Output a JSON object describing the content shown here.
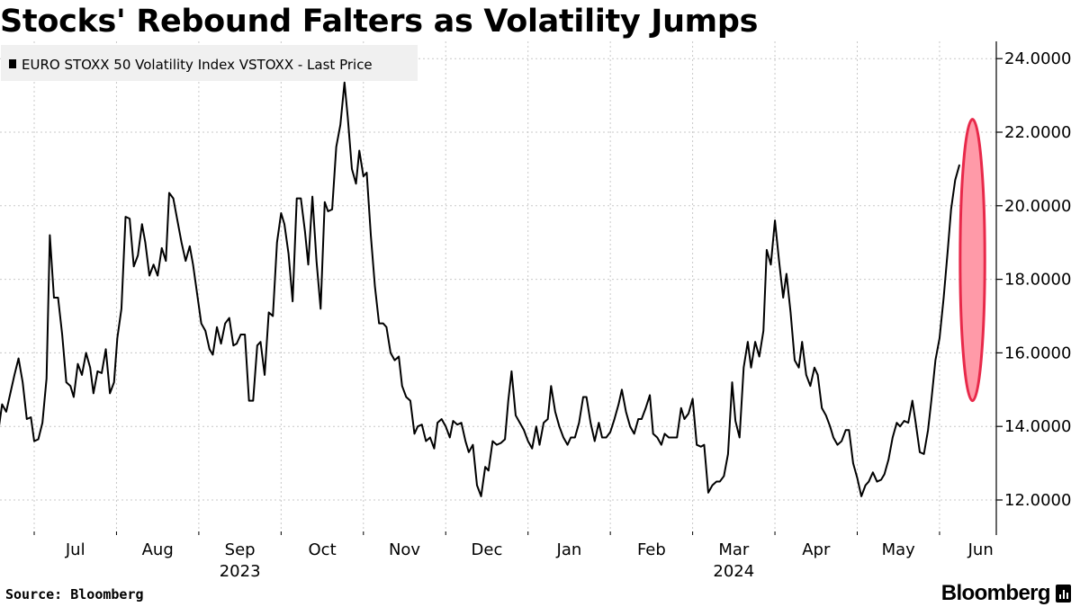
{
  "title": "Stocks' Rebound Falters as Volatility Jumps",
  "source": "Source: Bloomberg",
  "brand": "Bloomberg",
  "colors": {
    "line": "#000000",
    "highlight_fill": "#ff9aa8",
    "highlight_stroke": "#e8294a",
    "grid": "#c8c8c8",
    "legend_bg": "#f0f0f0"
  },
  "chart_data": {
    "type": "line",
    "title": "Stocks' Rebound Falters as Volatility Jumps",
    "xlabel": "",
    "ylabel": "",
    "ylim": [
      11.0,
      25.0
    ],
    "yticks": [
      12,
      14,
      16,
      18,
      20,
      22,
      24
    ],
    "ytick_labels": [
      "12.0000",
      "14.0000",
      "16.0000",
      "18.0000",
      "20.0000",
      "22.0000",
      "24.0000"
    ],
    "month_labels": [
      "Jul",
      "Aug",
      "Sep",
      "Oct",
      "Nov",
      "Dec",
      "Jan",
      "Feb",
      "Mar",
      "Apr",
      "May",
      "Jun"
    ],
    "year_labels": [
      {
        "label": "2023",
        "month_index": 2
      },
      {
        "label": "2024",
        "month_index": 8
      }
    ],
    "legend": "EURO STOXX 50 Volatility Index VSTOXX - Last Price",
    "legend_position": "top-left",
    "highlight": {
      "shape": "ellipse",
      "month_from": 11.25,
      "month_to": 11.55,
      "y_from": 14.7,
      "y_to": 22.35
    },
    "series": [
      {
        "name": "EURO STOXX 50 Volatility Index VSTOXX - Last Price",
        "points": [
          [
            -0.44,
            13.8
          ],
          [
            -0.39,
            14.6
          ],
          [
            -0.34,
            14.4
          ],
          [
            -0.29,
            14.9
          ],
          [
            -0.24,
            15.4
          ],
          [
            -0.19,
            15.85
          ],
          [
            -0.14,
            15.2
          ],
          [
            -0.09,
            14.2
          ],
          [
            -0.04,
            14.25
          ],
          [
            0.0,
            13.6
          ],
          [
            0.05,
            13.65
          ],
          [
            0.1,
            14.1
          ],
          [
            0.15,
            15.3
          ],
          [
            0.19,
            19.2
          ],
          [
            0.24,
            17.5
          ],
          [
            0.29,
            17.5
          ],
          [
            0.34,
            16.5
          ],
          [
            0.39,
            15.2
          ],
          [
            0.44,
            15.1
          ],
          [
            0.48,
            14.8
          ],
          [
            0.53,
            15.7
          ],
          [
            0.58,
            15.4
          ],
          [
            0.63,
            16.0
          ],
          [
            0.68,
            15.6
          ],
          [
            0.72,
            14.9
          ],
          [
            0.77,
            15.5
          ],
          [
            0.82,
            15.45
          ],
          [
            0.87,
            16.1
          ],
          [
            0.92,
            14.9
          ],
          [
            0.97,
            15.2
          ],
          [
            1.01,
            16.4
          ],
          [
            1.06,
            17.2
          ],
          [
            1.11,
            19.7
          ],
          [
            1.16,
            19.65
          ],
          [
            1.21,
            18.35
          ],
          [
            1.26,
            18.65
          ],
          [
            1.31,
            19.5
          ],
          [
            1.35,
            19.0
          ],
          [
            1.4,
            18.1
          ],
          [
            1.45,
            18.4
          ],
          [
            1.5,
            18.1
          ],
          [
            1.55,
            18.85
          ],
          [
            1.6,
            18.5
          ],
          [
            1.64,
            20.35
          ],
          [
            1.69,
            20.2
          ],
          [
            1.74,
            19.6
          ],
          [
            1.79,
            19.0
          ],
          [
            1.84,
            18.5
          ],
          [
            1.89,
            18.9
          ],
          [
            1.93,
            18.4
          ],
          [
            1.98,
            17.6
          ],
          [
            2.03,
            16.8
          ],
          [
            2.08,
            16.6
          ],
          [
            2.13,
            16.1
          ],
          [
            2.17,
            15.95
          ],
          [
            2.22,
            16.7
          ],
          [
            2.27,
            16.25
          ],
          [
            2.32,
            16.8
          ],
          [
            2.37,
            16.95
          ],
          [
            2.42,
            16.2
          ],
          [
            2.46,
            16.25
          ],
          [
            2.51,
            16.5
          ],
          [
            2.56,
            16.5
          ],
          [
            2.61,
            14.7
          ],
          [
            2.66,
            14.7
          ],
          [
            2.71,
            16.2
          ],
          [
            2.75,
            16.3
          ],
          [
            2.8,
            15.4
          ],
          [
            2.85,
            17.1
          ],
          [
            2.9,
            17.0
          ],
          [
            2.95,
            19.0
          ],
          [
            3.0,
            19.8
          ],
          [
            3.04,
            19.5
          ],
          [
            3.09,
            18.7
          ],
          [
            3.14,
            17.4
          ],
          [
            3.19,
            20.2
          ],
          [
            3.24,
            20.2
          ],
          [
            3.29,
            19.3
          ],
          [
            3.33,
            18.4
          ],
          [
            3.38,
            20.25
          ],
          [
            3.43,
            18.5
          ],
          [
            3.48,
            17.2
          ],
          [
            3.53,
            20.1
          ],
          [
            3.57,
            19.85
          ],
          [
            3.62,
            19.9
          ],
          [
            3.67,
            21.6
          ],
          [
            3.72,
            22.2
          ],
          [
            3.77,
            23.35
          ],
          [
            3.81,
            22.4
          ],
          [
            3.86,
            21.0
          ],
          [
            3.91,
            20.6
          ],
          [
            3.95,
            21.5
          ],
          [
            4.0,
            20.8
          ],
          [
            4.04,
            20.9
          ],
          [
            4.09,
            19.2
          ],
          [
            4.14,
            17.8
          ],
          [
            4.19,
            16.8
          ],
          [
            4.24,
            16.8
          ],
          [
            4.28,
            16.7
          ],
          [
            4.33,
            16.0
          ],
          [
            4.38,
            15.8
          ],
          [
            4.43,
            15.9
          ],
          [
            4.47,
            15.1
          ],
          [
            4.52,
            14.8
          ],
          [
            4.57,
            14.7
          ],
          [
            4.62,
            13.8
          ],
          [
            4.66,
            14.0
          ],
          [
            4.71,
            14.05
          ],
          [
            4.76,
            13.6
          ],
          [
            4.81,
            13.7
          ],
          [
            4.86,
            13.4
          ],
          [
            4.9,
            14.1
          ],
          [
            4.95,
            14.2
          ],
          [
            5.0,
            14.0
          ],
          [
            5.05,
            13.7
          ],
          [
            5.09,
            14.15
          ],
          [
            5.14,
            14.05
          ],
          [
            5.19,
            14.1
          ],
          [
            5.24,
            13.6
          ],
          [
            5.28,
            13.3
          ],
          [
            5.33,
            13.5
          ],
          [
            5.38,
            12.4
          ],
          [
            5.43,
            12.1
          ],
          [
            5.48,
            12.9
          ],
          [
            5.52,
            12.8
          ],
          [
            5.57,
            13.6
          ],
          [
            5.62,
            13.5
          ],
          [
            5.67,
            13.55
          ],
          [
            5.72,
            13.65
          ],
          [
            5.76,
            14.7
          ],
          [
            5.8,
            15.5
          ],
          [
            5.85,
            14.3
          ],
          [
            5.9,
            14.1
          ],
          [
            5.95,
            13.9
          ],
          [
            6.0,
            13.6
          ],
          [
            6.05,
            13.4
          ],
          [
            6.1,
            14.0
          ],
          [
            6.14,
            13.5
          ],
          [
            6.19,
            14.1
          ],
          [
            6.24,
            14.2
          ],
          [
            6.28,
            15.1
          ],
          [
            6.33,
            14.4
          ],
          [
            6.38,
            14.0
          ],
          [
            6.43,
            13.7
          ],
          [
            6.48,
            13.5
          ],
          [
            6.52,
            13.7
          ],
          [
            6.57,
            13.7
          ],
          [
            6.62,
            14.1
          ],
          [
            6.67,
            14.8
          ],
          [
            6.71,
            14.8
          ],
          [
            6.76,
            14.1
          ],
          [
            6.81,
            13.6
          ],
          [
            6.86,
            14.1
          ],
          [
            6.9,
            13.7
          ],
          [
            6.95,
            13.7
          ],
          [
            7.0,
            13.85
          ],
          [
            7.05,
            14.2
          ],
          [
            7.1,
            14.6
          ],
          [
            7.14,
            15.0
          ],
          [
            7.19,
            14.4
          ],
          [
            7.24,
            14.0
          ],
          [
            7.29,
            13.8
          ],
          [
            7.34,
            14.2
          ],
          [
            7.38,
            14.2
          ],
          [
            7.43,
            14.5
          ],
          [
            7.48,
            14.85
          ],
          [
            7.52,
            13.8
          ],
          [
            7.57,
            13.7
          ],
          [
            7.62,
            13.5
          ],
          [
            7.66,
            13.8
          ],
          [
            7.71,
            13.7
          ],
          [
            7.76,
            13.7
          ],
          [
            7.81,
            13.7
          ],
          [
            7.86,
            14.5
          ],
          [
            7.9,
            14.2
          ],
          [
            7.95,
            14.35
          ],
          [
            8.0,
            14.75
          ],
          [
            8.05,
            13.5
          ],
          [
            8.1,
            13.45
          ],
          [
            8.14,
            13.5
          ],
          [
            8.19,
            12.2
          ],
          [
            8.24,
            12.4
          ],
          [
            8.29,
            12.5
          ],
          [
            8.33,
            12.5
          ],
          [
            8.38,
            12.65
          ],
          [
            8.43,
            13.25
          ],
          [
            8.48,
            15.2
          ],
          [
            8.52,
            14.15
          ],
          [
            8.57,
            13.7
          ],
          [
            8.62,
            15.6
          ],
          [
            8.67,
            16.3
          ],
          [
            8.71,
            15.6
          ],
          [
            8.76,
            16.3
          ],
          [
            8.81,
            15.9
          ],
          [
            8.86,
            16.6
          ],
          [
            8.9,
            18.8
          ],
          [
            8.95,
            18.4
          ],
          [
            9.0,
            19.6
          ],
          [
            9.05,
            18.5
          ],
          [
            9.1,
            17.5
          ],
          [
            9.14,
            18.15
          ],
          [
            9.19,
            17.1
          ],
          [
            9.24,
            15.8
          ],
          [
            9.29,
            15.6
          ],
          [
            9.33,
            16.3
          ],
          [
            9.38,
            15.4
          ],
          [
            9.43,
            15.1
          ],
          [
            9.48,
            15.6
          ],
          [
            9.52,
            15.4
          ],
          [
            9.57,
            14.5
          ],
          [
            9.62,
            14.3
          ],
          [
            9.67,
            14.0
          ],
          [
            9.71,
            13.7
          ],
          [
            9.76,
            13.5
          ],
          [
            9.81,
            13.6
          ],
          [
            9.86,
            13.9
          ],
          [
            9.9,
            13.9
          ],
          [
            9.95,
            13.0
          ],
          [
            10.0,
            12.6
          ],
          [
            10.05,
            12.1
          ],
          [
            10.1,
            12.4
          ],
          [
            10.14,
            12.5
          ],
          [
            10.19,
            12.75
          ],
          [
            10.24,
            12.5
          ],
          [
            10.29,
            12.55
          ],
          [
            10.33,
            12.7
          ],
          [
            10.38,
            13.1
          ],
          [
            10.43,
            13.7
          ],
          [
            10.48,
            14.1
          ],
          [
            10.52,
            14.0
          ],
          [
            10.57,
            14.15
          ],
          [
            10.62,
            14.1
          ],
          [
            10.67,
            14.7
          ],
          [
            10.71,
            14.1
          ],
          [
            10.76,
            13.3
          ],
          [
            10.81,
            13.25
          ],
          [
            10.86,
            13.9
          ],
          [
            10.9,
            14.7
          ],
          [
            10.95,
            15.8
          ],
          [
            11.0,
            16.4
          ],
          [
            11.05,
            17.5
          ],
          [
            11.1,
            18.8
          ],
          [
            11.14,
            19.9
          ],
          [
            11.19,
            20.7
          ],
          [
            11.24,
            21.1
          ]
        ]
      }
    ]
  }
}
